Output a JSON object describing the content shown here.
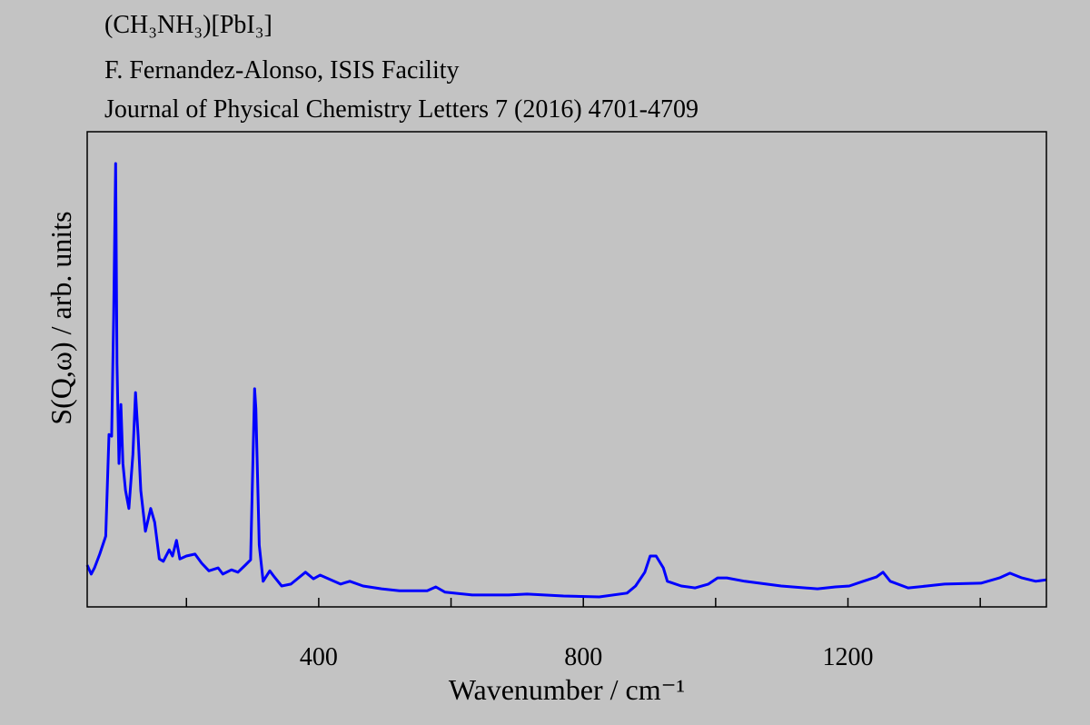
{
  "chart_data": {
    "type": "line",
    "title_lines": [
      "(CH₃NH₃)[PbI₃]",
      "F. Fernandez-Alonso, ISIS Facility",
      "Journal of Physical Chemistry Letters 7 (2016) 4701-4709"
    ],
    "x_label": "Wavenumber / cm⁻¹",
    "y_label": "S(Q,ω) / arb. units",
    "xlim": [
      50,
      1500
    ],
    "xticks": [
      400,
      800,
      1200
    ],
    "xminor": [
      200,
      600,
      1000,
      1400
    ],
    "ylim": [
      0,
      100
    ],
    "series": [
      {
        "color": "#0000ff",
        "x": [
          50,
          56,
          61,
          69,
          78,
          83,
          87,
          90,
          93,
          95,
          98,
          101,
          104,
          108,
          113,
          119,
          123,
          127,
          131,
          138,
          146,
          152,
          159,
          165,
          174,
          179,
          185,
          190,
          200,
          213,
          223,
          234,
          248,
          255,
          268,
          278,
          289,
          297,
          303,
          305,
          310,
          316,
          326,
          333,
          344,
          358,
          380,
          392,
          402,
          415,
          433,
          447,
          467,
          495,
          522,
          564,
          577,
          591,
          632,
          687,
          715,
          770,
          824,
          866,
          879,
          893,
          901,
          910,
          921,
          927,
          948,
          969,
          989,
          1003,
          1017,
          1044,
          1099,
          1154,
          1181,
          1202,
          1223,
          1243,
          1253,
          1264,
          1291,
          1319,
          1346,
          1401,
          1429,
          1445,
          1463,
          1484,
          1500
        ],
        "values": [
          8.8,
          6.9,
          8.2,
          11.1,
          14.9,
          36.3,
          35.9,
          60.8,
          93.3,
          51.2,
          30.2,
          42.6,
          30.2,
          24.5,
          20.7,
          32.1,
          45.1,
          35.9,
          24.5,
          15.9,
          20.7,
          17.8,
          10.1,
          9.6,
          12,
          10.7,
          14,
          10.1,
          10.7,
          11.1,
          9.2,
          7.6,
          8.2,
          6.9,
          7.8,
          7.3,
          8.8,
          9.9,
          45.9,
          41.7,
          13,
          5.4,
          7.6,
          6.3,
          4.4,
          4.8,
          7.3,
          5.9,
          6.7,
          5.9,
          4.8,
          5.4,
          4.4,
          3.8,
          3.4,
          3.4,
          4.2,
          3.1,
          2.5,
          2.5,
          2.7,
          2.3,
          2.1,
          2.9,
          4.4,
          7.3,
          10.7,
          10.7,
          8.2,
          5.4,
          4.4,
          4,
          4.8,
          6.1,
          6.1,
          5.4,
          4.4,
          3.8,
          4.2,
          4.4,
          5.4,
          6.3,
          7.3,
          5.4,
          4,
          4.4,
          4.8,
          5,
          6.1,
          7.1,
          6.1,
          5.4,
          5.7
        ]
      }
    ]
  }
}
